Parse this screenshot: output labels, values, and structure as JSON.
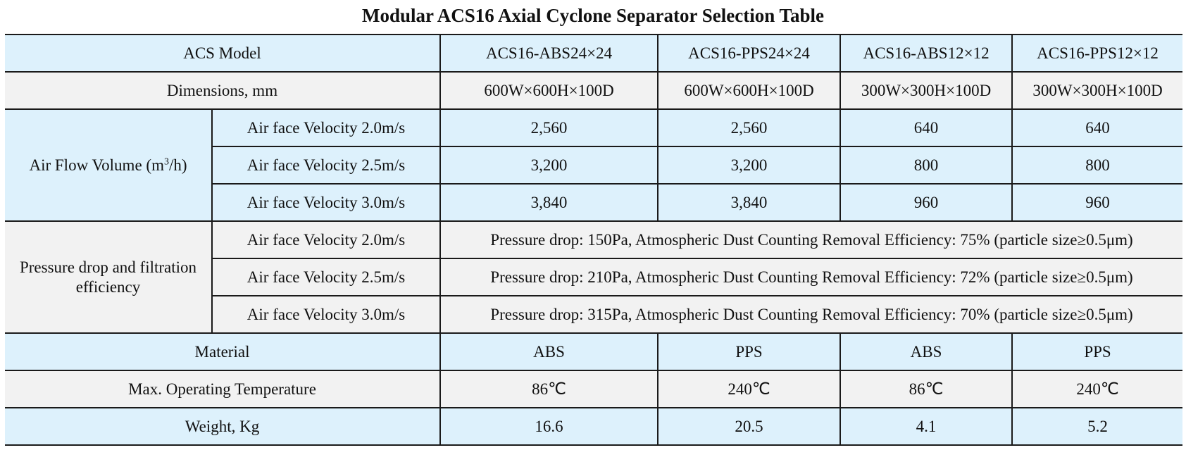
{
  "title": "Modular ACS16 Axial Cyclone Separator Selection Table",
  "header": {
    "label": "ACS Model",
    "models": [
      "ACS16-ABS24×24",
      "ACS16-PPS24×24",
      "ACS16-ABS12×12",
      "ACS16-PPS12×12"
    ]
  },
  "dimensions": {
    "label": "Dimensions, mm",
    "values": [
      "600W×600H×100D",
      "600W×600H×100D",
      "300W×300H×100D",
      "300W×300H×100D"
    ]
  },
  "airflow": {
    "label_prefix": "Air Flow Volume (m",
    "label_sup": "3",
    "label_suffix": "/h)",
    "rows": [
      {
        "label": "Air face Velocity 2.0m/s",
        "values": [
          "2,560",
          "2,560",
          "640",
          "640"
        ]
      },
      {
        "label": "Air face Velocity 2.5m/s",
        "values": [
          "3,200",
          "3,200",
          "800",
          "800"
        ]
      },
      {
        "label": "Air face Velocity 3.0m/s",
        "values": [
          "3,840",
          "3,840",
          "960",
          "960"
        ]
      }
    ]
  },
  "pressure": {
    "label": "Pressure drop and filtration efficiency",
    "rows": [
      {
        "label": "Air face Velocity 2.0m/s",
        "value": "Pressure drop: 150Pa, Atmospheric Dust Counting Removal Efficiency: 75% (particle size≥0.5μm)"
      },
      {
        "label": "Air face Velocity 2.5m/s",
        "value": "Pressure drop: 210Pa, Atmospheric Dust Counting Removal Efficiency: 72% (particle size≥0.5μm)"
      },
      {
        "label": "Air face Velocity 3.0m/s",
        "value": "Pressure drop: 315Pa, Atmospheric Dust Counting Removal Efficiency: 70% (particle size≥0.5μm)"
      }
    ]
  },
  "material": {
    "label": "Material",
    "values": [
      "ABS",
      "PPS",
      "ABS",
      "PPS"
    ]
  },
  "temperature": {
    "label": "Max. Operating Temperature",
    "values": [
      "86℃",
      "240℃",
      "86℃",
      "240℃"
    ]
  },
  "weight": {
    "label": "Weight, Kg",
    "values": [
      "16.6",
      "20.5",
      "4.1",
      "5.2"
    ]
  },
  "colors": {
    "blue_row": "#ddf1fc",
    "gray_row": "#f2f2f2",
    "border": "#1a1a1a"
  }
}
